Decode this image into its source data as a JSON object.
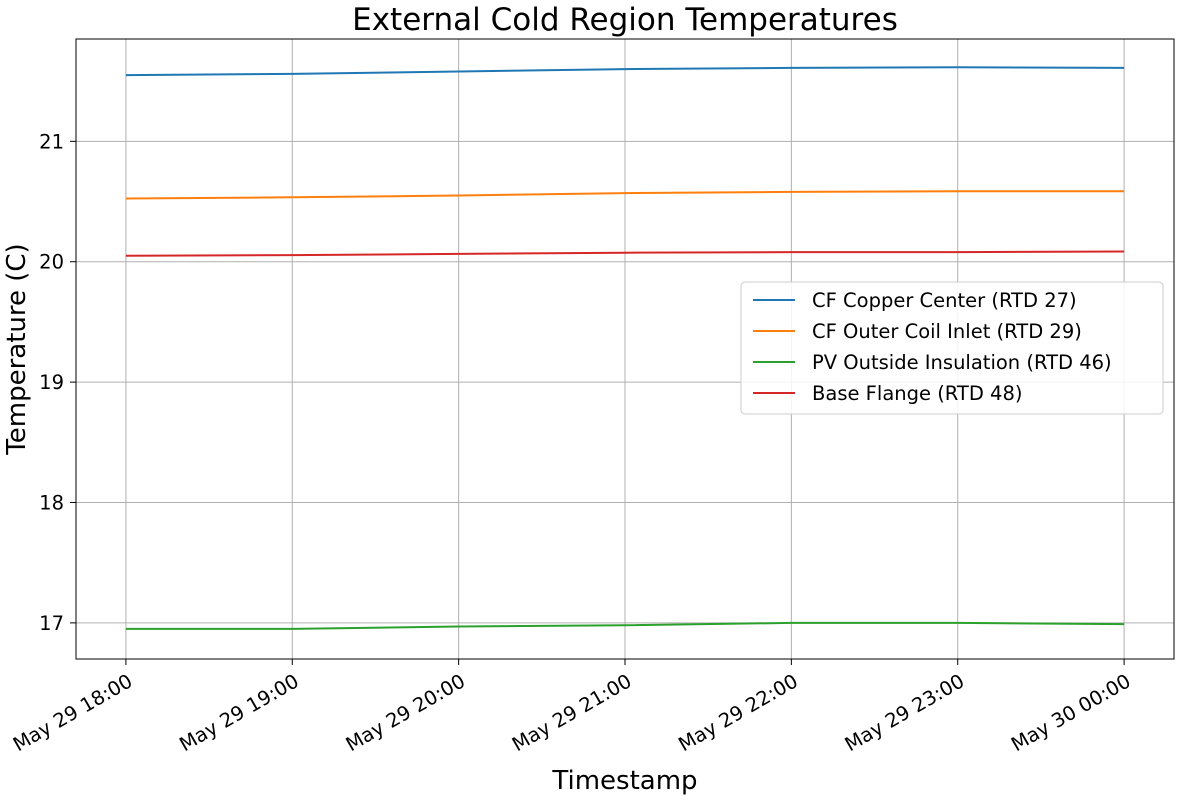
{
  "chart_data": {
    "type": "line",
    "title": "External Cold Region Temperatures",
    "xlabel": "Timestamp",
    "ylabel": "Temperature (C)",
    "x_ticks": [
      "May 29 18:00",
      "May 29 19:00",
      "May 29 20:00",
      "May 29 21:00",
      "May 29 22:00",
      "May 29 23:00",
      "May 30 00:00"
    ],
    "y_ticks": [
      17,
      18,
      19,
      20,
      21
    ],
    "ylim": [
      16.7,
      21.85
    ],
    "xlim": [
      "May 29 17:42",
      "May 30 00:18"
    ],
    "grid": true,
    "legend_position": "center-right",
    "x": [
      "May 29 18:00",
      "May 29 19:00",
      "May 29 20:00",
      "May 29 21:00",
      "May 29 22:00",
      "May 29 23:00",
      "May 30 00:00"
    ],
    "series": [
      {
        "name": "CF Copper Center (RTD 27)",
        "color": "#1f77b4",
        "values": [
          21.55,
          21.56,
          21.58,
          21.6,
          21.61,
          21.615,
          21.61
        ]
      },
      {
        "name": "CF Outer Coil Inlet (RTD 29)",
        "color": "#ff7f0e",
        "values": [
          20.525,
          20.535,
          20.55,
          20.57,
          20.58,
          20.585,
          20.585
        ]
      },
      {
        "name": "PV Outside Insulation (RTD 46)",
        "color": "#2ca02c",
        "values": [
          16.95,
          16.95,
          16.97,
          16.98,
          17.0,
          17.0,
          16.99
        ]
      },
      {
        "name": "Base Flange (RTD 48)",
        "color": "#d62728",
        "values": [
          20.05,
          20.055,
          20.065,
          20.075,
          20.08,
          20.08,
          20.085
        ]
      }
    ]
  }
}
